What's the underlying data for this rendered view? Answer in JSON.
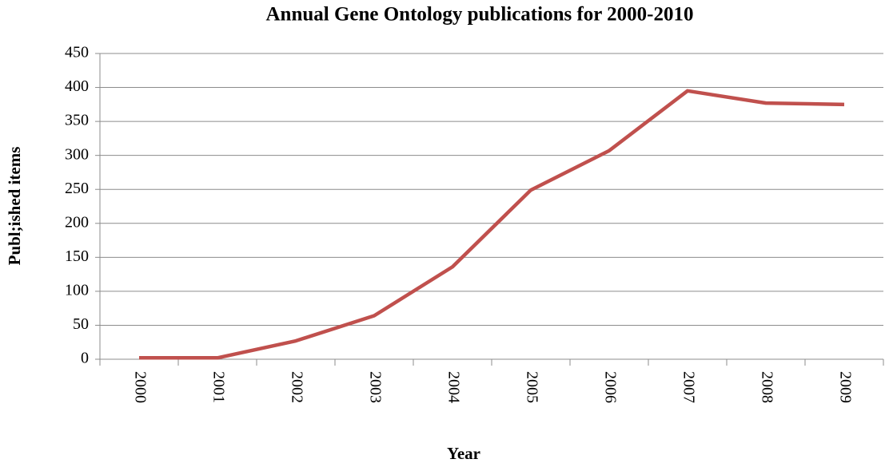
{
  "chart_data": {
    "type": "line",
    "title": "Annual Gene Ontology publications for 2000-2010",
    "x_label": "Year",
    "y_label": "Publ;ished items",
    "categories": [
      "2000",
      "2001",
      "2002",
      "2003",
      "2004",
      "2005",
      "2006",
      "2007",
      "2008",
      "2009"
    ],
    "series": [
      {
        "name": "Published items",
        "color": "#c0504d",
        "values": [
          2,
          2,
          27,
          64,
          136,
          249,
          307,
          395,
          377,
          375
        ]
      }
    ],
    "ylim": [
      0,
      450
    ],
    "yticks": [
      0,
      50,
      100,
      150,
      200,
      250,
      300,
      350,
      400,
      450
    ],
    "grid": true,
    "legend": false
  }
}
